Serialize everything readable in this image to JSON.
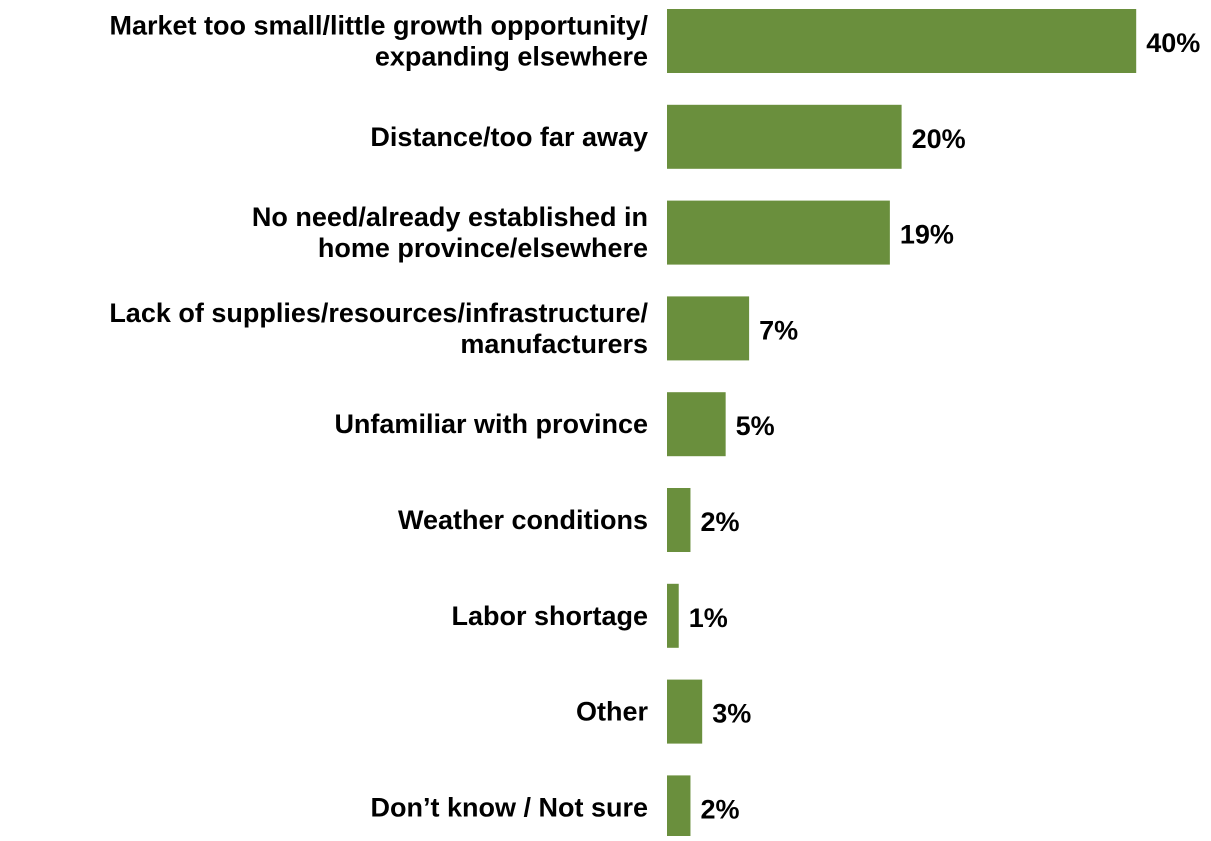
{
  "chart_data": {
    "type": "bar",
    "orientation": "horizontal",
    "categories": [
      [
        "Market too small/little growth opportunity/",
        "expanding elsewhere"
      ],
      [
        "Distance/too far away"
      ],
      [
        "No need/already established in",
        "home province/elsewhere"
      ],
      [
        "Lack of supplies/resources/infrastructure/",
        "manufacturers"
      ],
      [
        "Unfamiliar with province"
      ],
      [
        "Weather conditions"
      ],
      [
        "Labor shortage"
      ],
      [
        "Other"
      ],
      [
        "Don’t know / Not sure"
      ]
    ],
    "values": [
      40,
      20,
      19,
      7,
      5,
      2,
      1,
      3,
      2
    ],
    "value_labels": [
      "40%",
      "20%",
      "19%",
      "7%",
      "5%",
      "2%",
      "1%",
      "3%",
      "2%"
    ],
    "value_unit": "%",
    "bar_color": "#6a8f3d",
    "title": "",
    "xlabel": "",
    "ylabel": "",
    "grid": false,
    "legend": "none"
  }
}
